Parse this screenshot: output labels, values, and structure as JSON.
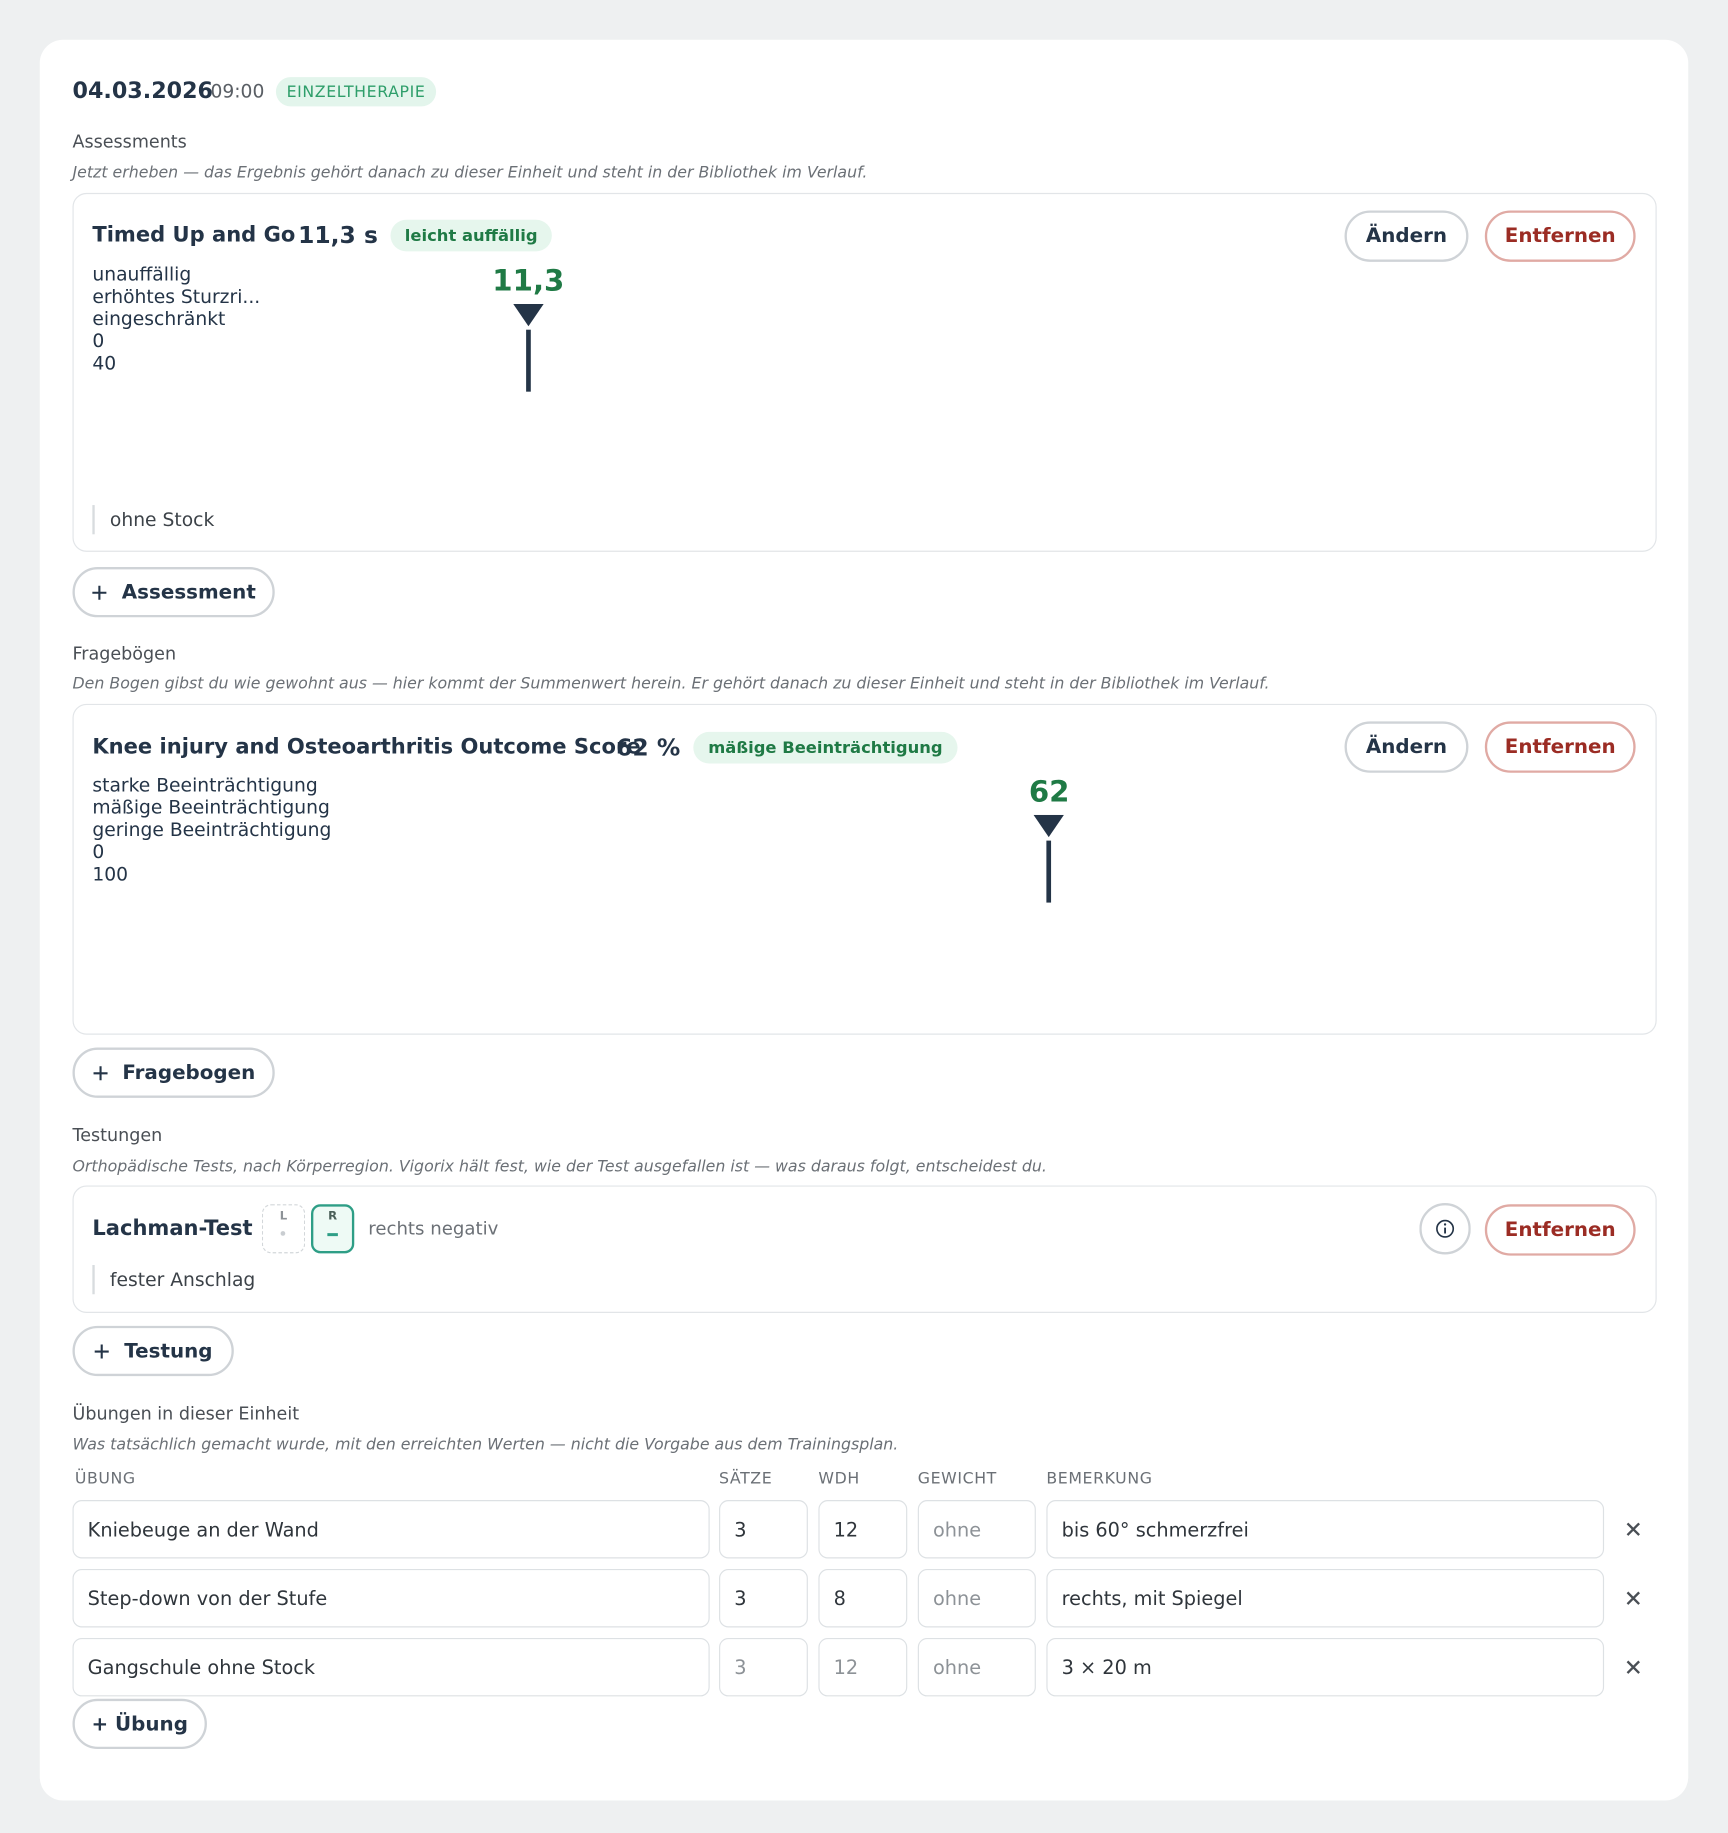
{
  "session": {
    "date": "04.03.2026",
    "time": "09:00",
    "type": "EINZELTHERAPIE"
  },
  "assessments": {
    "heading": "Assessments",
    "note": "Jetzt erheben — das Ergebnis gehört danach zu dieser Einheit und steht in der Bibliothek im Verlauf.",
    "items": [
      {
        "name": "Timed Up and Go",
        "result": "11,3 s",
        "badge": "leicht auffällig",
        "edit": "Ändern",
        "remove": "Entfernen",
        "gauge": {
          "min": 0,
          "max": 40,
          "value": 11.3,
          "value_label": "11,3",
          "marker_color": "#1f7a45",
          "segments": [
            {
              "end": 10,
              "label": "unauffällig",
              "color": "#4cd384"
            },
            {
              "end": 13,
              "label": null,
              "color": "#6fdb9b"
            },
            {
              "end": 20,
              "label": "erhöhtes Sturzri...",
              "color": "#e89442"
            },
            {
              "end": 40,
              "label": "eingeschränkt",
              "color": "#cc574d"
            }
          ]
        },
        "note": "ohne Stock"
      }
    ],
    "add": "Assessment"
  },
  "questionnaires": {
    "heading": "Fragebögen",
    "note": "Den Bogen gibst du wie gewohnt aus — hier kommt der Summenwert herein. Er gehört danach zu dieser Einheit und steht in der Bibliothek im Verlauf.",
    "items": [
      {
        "name": "Knee injury and Osteoarthritis Outcome Score",
        "result": "62 %",
        "badge": "mäßige Beeinträchtigung",
        "edit": "Ändern",
        "remove": "Entfernen",
        "gauge": {
          "min": 0,
          "max": 100,
          "value": 62,
          "marker_color": "#1f7a45",
          "segments": [
            {
              "end": 40,
              "label": "starke Beeinträchtigung",
              "color": "#cc574d"
            },
            {
              "end": 70,
              "label": "mäßige Beeinträchtigung",
              "color": "#6fdb9b"
            },
            {
              "end": 100,
              "label": "geringe Beeinträchtigung",
              "color": "#4cd384"
            }
          ]
        }
      }
    ],
    "add": "Fragebogen"
  },
  "tests": {
    "heading": "Testungen",
    "note": "Orthopädische Tests, nach Körperregion. Vigorix hält fest, wie der Test ausgefallen ist — was daraus folgt, entscheidest du.",
    "items": [
      {
        "name": "Lachman-Test",
        "left": "L",
        "right": "R",
        "result": "rechts negativ",
        "note": "fester Anschlag",
        "remove": "Entfernen"
      }
    ],
    "add": "Testung"
  },
  "exercises": {
    "heading": "Übungen in dieser Einheit",
    "note": "Was tatsächlich gemacht wurde, mit den erreichten Werten — nicht die Vorgabe aus dem Trainingsplan.",
    "columns": [
      "ÜBUNG",
      "SÄTZE",
      "WDH",
      "GEWICHT",
      "BEMERKUNG"
    ],
    "rows": [
      [
        "Kniebeuge an der Wand",
        "3",
        "12",
        "ohne",
        "bis 60° schmerzfrei"
      ],
      [
        "Step-down von der Stufe",
        "3",
        "8",
        "ohne",
        "rechts, mit Spiegel"
      ],
      [
        "Gangschule ohne Stock",
        "3",
        "12",
        "ohne",
        "3 × 20 m"
      ]
    ],
    "add": "+ Übung"
  }
}
